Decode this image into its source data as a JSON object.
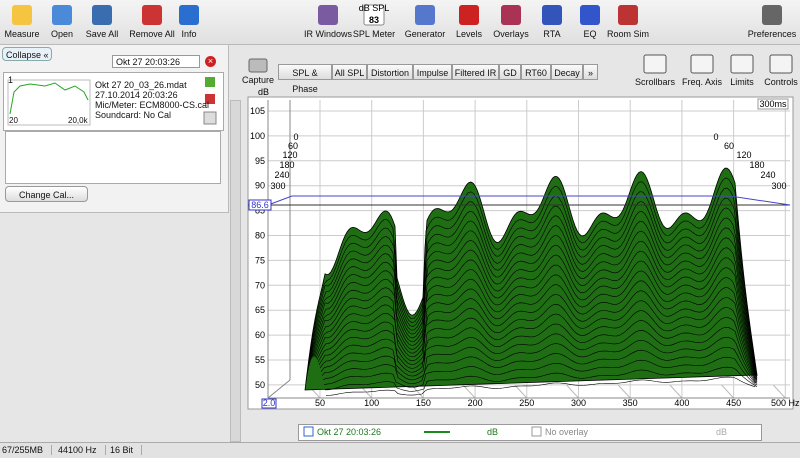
{
  "toolbar": {
    "left": [
      "Measure",
      "Open",
      "Save All",
      "Remove All",
      "Info"
    ],
    "center": [
      "IR Windows",
      "SPL Meter",
      "Generator",
      "Levels",
      "Overlays",
      "RTA",
      "EQ",
      "Room Sim"
    ],
    "spl_icon": {
      "unit": "dB SPL",
      "reading": "83"
    },
    "right": [
      "Preferences"
    ]
  },
  "sidebar": {
    "collapse": "Collapse",
    "timestamp": "Okt 27 20:03:26",
    "measurement": {
      "index": "1",
      "name": "Okt 27 20_03_26.mdat",
      "date": "27.10.2014 20:03:26",
      "mic": "Mic/Meter: ECM8000-CS.cal",
      "soundcard": "Soundcard: No Cal",
      "thumb_min": "20",
      "thumb_max": "20,0k"
    },
    "button": "Change Cal..."
  },
  "tabs": {
    "capture": "Capture",
    "items": [
      "SPL & Phase",
      "All SPL",
      "Distortion",
      "Impulse",
      "Filtered IR",
      "GD",
      "RT60",
      "Decay",
      "»"
    ]
  },
  "controls": [
    "Scrollbars",
    "Freq. Axis",
    "Limits",
    "Controls"
  ],
  "plot": {
    "y_unit": "dB",
    "yticks": [
      "105",
      "100",
      "95",
      "90",
      "85",
      "80",
      "75",
      "70",
      "65",
      "60",
      "55",
      "50"
    ],
    "xticks": [
      "50",
      "100",
      "150",
      "200",
      "250",
      "300",
      "350",
      "400",
      "450",
      "500 Hz"
    ],
    "x_start": "2.0",
    "cursor": "86.6",
    "time": "300ms",
    "slices_left": [
      "0",
      "60",
      "120",
      "180",
      "240",
      "300"
    ],
    "slices_right": [
      "0",
      "60",
      "120",
      "180",
      "240",
      "300"
    ]
  },
  "legend": {
    "name": "Okt 27 20:03:26",
    "unit": "dB",
    "overlay": "No overlay",
    "overlay_unit": "dB"
  },
  "status": [
    "67/255MB",
    "44100 Hz",
    "16 Bit"
  ]
}
